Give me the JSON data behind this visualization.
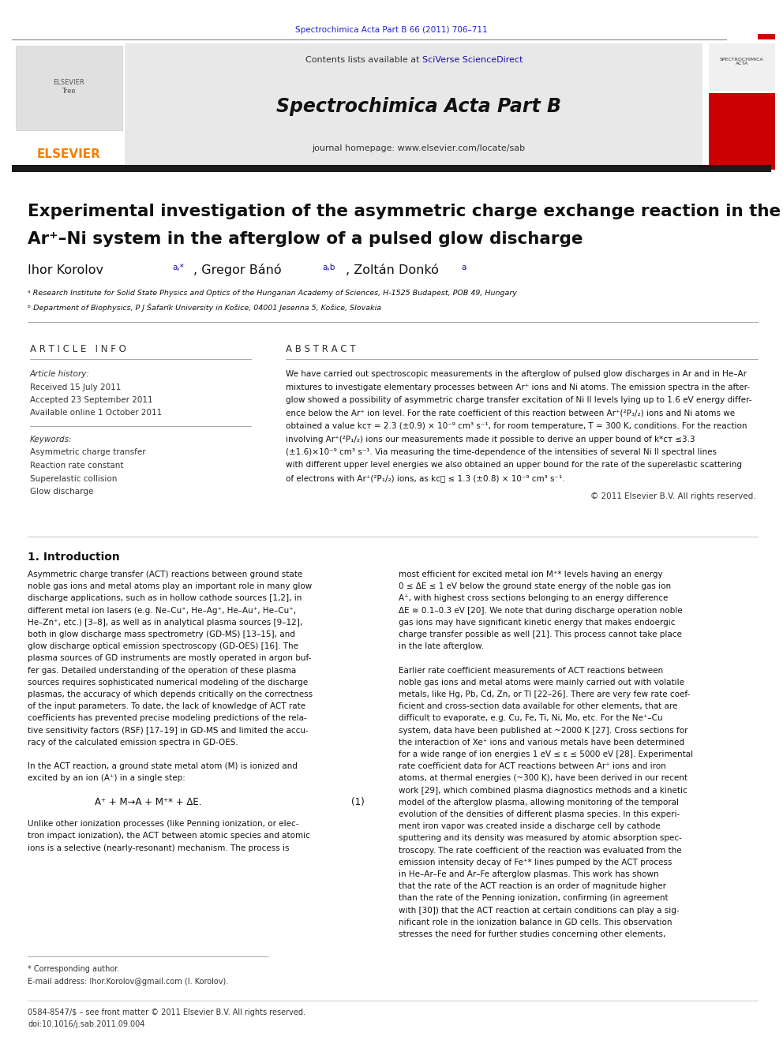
{
  "page_width": 9.92,
  "page_height": 13.23,
  "bg_color": "#ffffff",
  "top_citation": "Spectrochimica Acta Part B 66 (2011) 706–711",
  "top_citation_color": "#2222cc",
  "journal_header_bg": "#e8e8e8",
  "journal_name": "Spectrochimica Acta Part B",
  "journal_contents_plain": "Contents lists available at ",
  "journal_contents_link": "SciVerse ScienceDirect",
  "journal_homepage": "journal homepage: www.elsevier.com/locate/sab",
  "article_title_line1": "Experimental investigation of the asymmetric charge exchange reaction in the",
  "article_title_line2": "Ar⁺–Ni system in the afterglow of a pulsed glow discharge",
  "author1": "Ihor Korolov ",
  "author1_sup": "a,*",
  "author2": ", Gregor Bánó ",
  "author2_sup": "a,b",
  "author3": ", Zoltán Donkó ",
  "author3_sup": "a",
  "affil_a": "ᵃ Research Institute for Solid State Physics and Optics of the Hungarian Academy of Sciences, H-1525 Budapest, POB 49, Hungary",
  "affil_b": "ᵇ Department of Biophysics, P J Šafarík University in Košice, 04001 Jesenna 5, Košice, Slovakia",
  "article_info_header": "A R T I C L E   I N F O",
  "abstract_header": "A B S T R A C T",
  "article_history_header": "Article history:",
  "received": "Received 15 July 2011",
  "accepted": "Accepted 23 September 2011",
  "available": "Available online 1 October 2011",
  "keywords_header": "Keywords:",
  "keyword1": "Asymmetric charge transfer",
  "keyword2": "Reaction rate constant",
  "keyword3": "Superelastic collision",
  "keyword4": "Glow discharge",
  "abstract_lines": [
    "We have carried out spectroscopic measurements in the afterglow of pulsed glow discharges in Ar and in He–Ar",
    "mixtures to investigate elementary processes between Ar⁺ ions and Ni atoms. The emission spectra in the after-",
    "glow showed a possibility of asymmetric charge transfer excitation of Ni II levels lying up to 1.6 eV energy differ-",
    "ence below the Ar⁺ ion level. For the rate coefficient of this reaction between Ar⁺(²P₃/₂) ions and Ni atoms we",
    "obtained a value kᴄᴛ = 2.3 (±0.9) × 10⁻⁹ cm³ s⁻¹, for room temperature, T = 300 K, conditions. For the reaction",
    "involving Ar⁺(²P₁/₂) ions our measurements made it possible to derive an upper bound of k*ᴄᴛ ≤3.3",
    "(±1.6)×10⁻⁹ cm³ s⁻¹. Via measuring the time-dependence of the intensities of several Ni II spectral lines",
    "with different upper level energies we also obtained an upper bound for the rate of the superelastic scattering",
    "of electrons with Ar⁺(²P₁/₂) ions, as kᴄᴤ ≤ 1.3 (±0.8) × 10⁻⁹ cm³ s⁻¹."
  ],
  "copyright": "© 2011 Elsevier B.V. All rights reserved.",
  "section1_title": "1. Introduction",
  "intro_col1_lines": [
    "Asymmetric charge transfer (ACT) reactions between ground state",
    "noble gas ions and metal atoms play an important role in many glow",
    "discharge applications, such as in hollow cathode sources [1,2], in",
    "different metal ion lasers (e.g. Ne–Cu⁺, He–Ag⁺, He–Au⁺, He–Cu⁺,",
    "He–Zn⁺, etc.) [3–8], as well as in analytical plasma sources [9–12],",
    "both in glow discharge mass spectrometry (GD-MS) [13–15], and",
    "glow discharge optical emission spectroscopy (GD-OES) [16]. The",
    "plasma sources of GD instruments are mostly operated in argon buf-",
    "fer gas. Detailed understanding of the operation of these plasma",
    "sources requires sophisticated numerical modeling of the discharge",
    "plasmas, the accuracy of which depends critically on the correctness",
    "of the input parameters. To date, the lack of knowledge of ACT rate",
    "coefficients has prevented precise modeling predictions of the rela-",
    "tive sensitivity factors (RSF) [17–19] in GD-MS and limited the accu-",
    "racy of the calculated emission spectra in GD-OES.",
    "",
    "In the ACT reaction, a ground state metal atom (M) is ionized and",
    "excited by an ion (A⁺) in a single step:"
  ],
  "equation_text": "A⁺ + M→A + M⁺* + ΔE.",
  "eq_number": "(1)",
  "intro_col1_p3_lines": [
    "Unlike other ionization processes (like Penning ionization, or elec-",
    "tron impact ionization), the ACT between atomic species and atomic",
    "ions is a selective (nearly-resonant) mechanism. The process is"
  ],
  "intro_col2_lines": [
    "most efficient for excited metal ion M⁺* levels having an energy",
    "0 ≤ ΔE ≤ 1 eV below the ground state energy of the noble gas ion",
    "A⁺, with highest cross sections belonging to an energy difference",
    "ΔE ≅ 0.1–0.3 eV [20]. We note that during discharge operation noble",
    "gas ions may have significant kinetic energy that makes endoergic",
    "charge transfer possible as well [21]. This process cannot take place",
    "in the late afterglow.",
    "",
    "Earlier rate coefficient measurements of ACT reactions between",
    "noble gas ions and metal atoms were mainly carried out with volatile",
    "metals, like Hg, Pb, Cd, Zn, or Tl [22–26]. There are very few rate coef-",
    "ficient and cross-section data available for other elements, that are",
    "difficult to evaporate, e.g. Cu, Fe, Ti, Ni, Mo, etc. For the Ne⁺–Cu",
    "system, data have been published at ~2000 K [27]. Cross sections for",
    "the interaction of Xe⁺ ions and various metals have been determined",
    "for a wide range of ion energies 1 eV ≤ ε ≤ 5000 eV [28]. Experimental",
    "rate coefficient data for ACT reactions between Ar⁺ ions and iron",
    "atoms, at thermal energies (~300 K), have been derived in our recent",
    "work [29], which combined plasma diagnostics methods and a kinetic",
    "model of the afterglow plasma, allowing monitoring of the temporal",
    "evolution of the densities of different plasma species. In this experi-",
    "ment iron vapor was created inside a discharge cell by cathode",
    "sputtering and its density was measured by atomic absorption spec-",
    "troscopy. The rate coefficient of the reaction was evaluated from the",
    "emission intensity decay of Fe⁺* lines pumped by the ACT process",
    "in He–Ar–Fe and Ar–Fe afterglow plasmas. This work has shown",
    "that the rate of the ACT reaction is an order of magnitude higher",
    "than the rate of the Penning ionization, confirming (in agreement",
    "with [30]) that the ACT reaction at certain conditions can play a sig-",
    "nificant role in the ionization balance in GD cells. This observation",
    "stresses the need for further studies concerning other elements,"
  ],
  "footnote_star": "* Corresponding author.",
  "footnote_email": "E-mail address: Ihor.Korolov@gmail.com (I. Korolov).",
  "footer_issn": "0584-8547/$ – see front matter © 2011 Elsevier B.V. All rights reserved.",
  "footer_doi": "doi:10.1016/j.sab.2011.09.004",
  "elsevier_orange": "#f77f00",
  "red_bar_color": "#cc0000",
  "blue_link_color": "#1a0dab",
  "dark_gray": "#333333",
  "black": "#111111",
  "mid_gray": "#999999",
  "light_gray": "#bbbbbb"
}
